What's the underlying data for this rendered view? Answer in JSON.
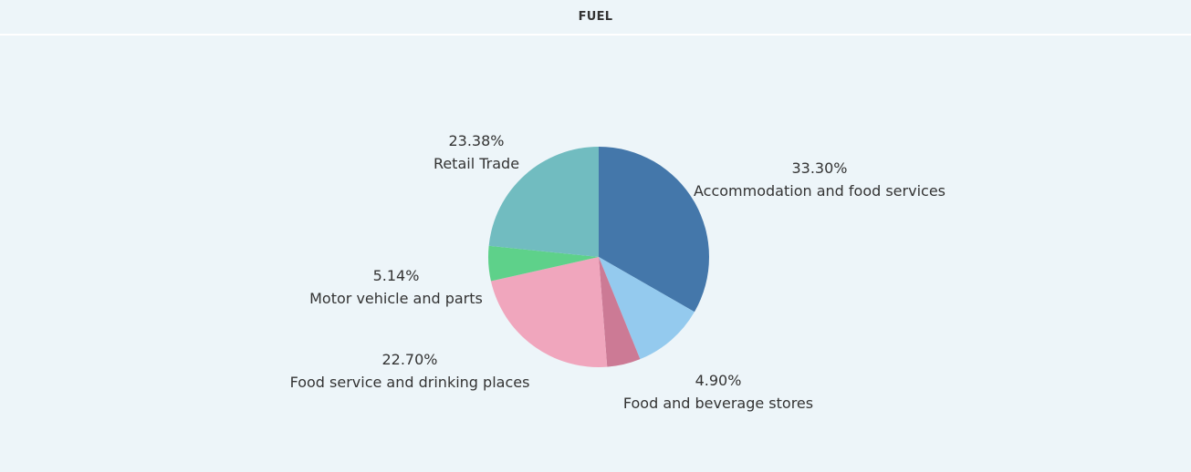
{
  "header": {
    "title": "FUEL"
  },
  "chart_data": {
    "type": "pie",
    "title": "FUEL",
    "start_angle_deg": 0,
    "direction": "clockwise",
    "slices": [
      {
        "name": "Accommodation and food services",
        "value": 33.3,
        "label": "33.30%",
        "color": "#4477aa"
      },
      {
        "name": "",
        "value": 10.58,
        "label": "",
        "color": "#94caee"
      },
      {
        "name": "Food and beverage stores",
        "value": 4.9,
        "label": "4.90%",
        "color": "#cc7a95"
      },
      {
        "name": "Food service and drinking places",
        "value": 22.7,
        "label": "22.70%",
        "color": "#f0a6bd"
      },
      {
        "name": "Motor vehicle and parts",
        "value": 5.14,
        "label": "5.14%",
        "color": "#5ed18a"
      },
      {
        "name": "Retail Trade",
        "value": 23.38,
        "label": "23.38%",
        "color": "#71bcc0"
      }
    ]
  }
}
